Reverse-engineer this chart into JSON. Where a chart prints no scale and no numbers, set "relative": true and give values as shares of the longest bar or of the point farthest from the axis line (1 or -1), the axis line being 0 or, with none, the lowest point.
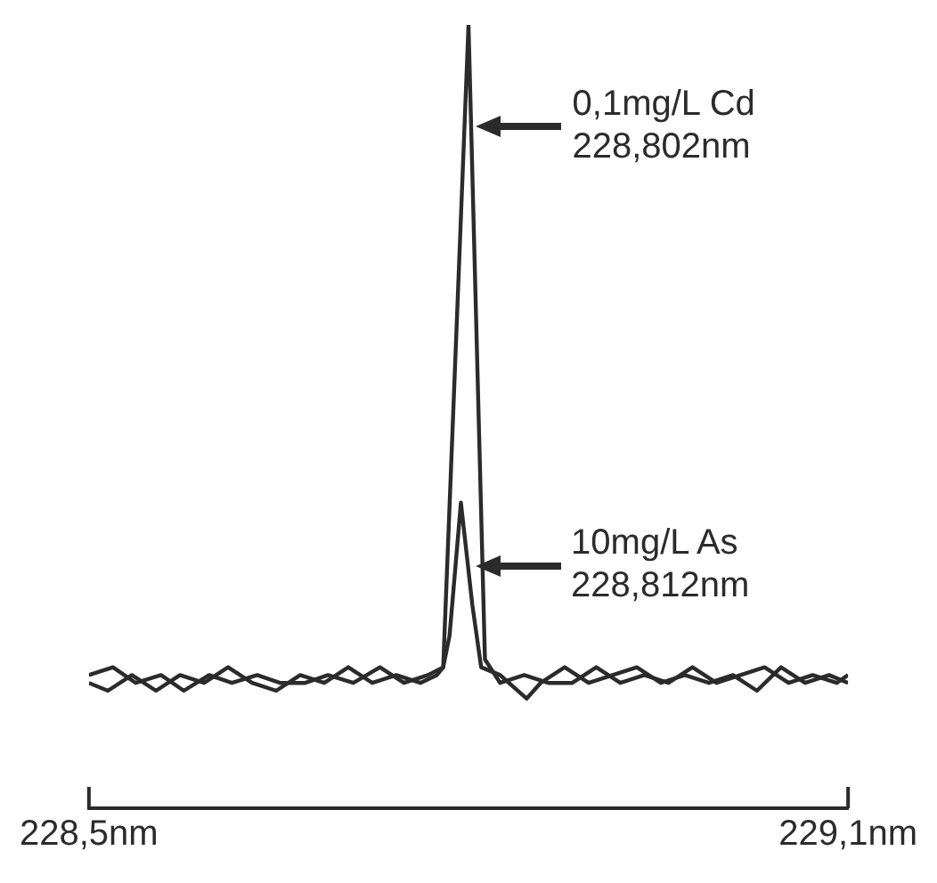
{
  "chart_data": {
    "type": "line",
    "relative": true,
    "xlim": [
      228.5,
      229.1
    ],
    "xticks": [
      {
        "value": 228.5,
        "label": "228,5nm"
      },
      {
        "value": 229.1,
        "label": "229,1nm"
      }
    ],
    "grid": false,
    "legend": false,
    "marker": "none",
    "line_style": "solid",
    "series": [
      {
        "color": "#2b2b2b",
        "x": [
          228.5,
          228.515,
          228.534,
          228.553,
          228.572,
          228.591,
          228.61,
          228.629,
          228.648,
          228.667,
          228.686,
          228.705,
          228.724,
          228.743,
          228.762,
          228.775,
          228.78,
          228.8,
          228.813,
          228.825,
          228.844,
          228.863,
          228.882,
          228.901,
          228.92,
          228.939,
          228.958,
          228.977,
          228.996,
          229.015,
          229.034,
          229.053,
          229.072,
          229.091,
          229.1
        ],
        "values": [
          0.16,
          0.15,
          0.17,
          0.15,
          0.17,
          0.16,
          0.18,
          0.16,
          0.15,
          0.17,
          0.16,
          0.18,
          0.16,
          0.17,
          0.16,
          0.17,
          0.18,
          1.0,
          0.19,
          0.16,
          0.17,
          0.16,
          0.16,
          0.18,
          0.16,
          0.17,
          0.16,
          0.18,
          0.16,
          0.17,
          0.18,
          0.16,
          0.17,
          0.16,
          0.17
        ]
      },
      {
        "color": "#2b2b2b",
        "x": [
          228.5,
          228.519,
          228.537,
          228.557,
          228.575,
          228.595,
          228.613,
          228.633,
          228.651,
          228.671,
          228.689,
          228.709,
          228.73,
          228.749,
          228.768,
          228.78,
          228.785,
          228.794,
          228.803,
          228.81,
          228.825,
          228.846,
          228.857,
          228.876,
          228.895,
          228.914,
          228.933,
          228.952,
          228.971,
          228.99,
          229.009,
          229.028,
          229.047,
          229.066,
          229.085,
          229.1
        ],
        "values": [
          0.17,
          0.18,
          0.16,
          0.17,
          0.15,
          0.17,
          0.16,
          0.17,
          0.16,
          0.16,
          0.17,
          0.16,
          0.18,
          0.16,
          0.17,
          0.18,
          0.22,
          0.39,
          0.26,
          0.18,
          0.17,
          0.14,
          0.16,
          0.18,
          0.16,
          0.17,
          0.18,
          0.16,
          0.17,
          0.16,
          0.17,
          0.15,
          0.18,
          0.16,
          0.17,
          0.16
        ]
      }
    ],
    "annotations": [
      {
        "text": "0,1mg/L Cd\n228,802nm",
        "x": 228.806,
        "y": 0.87
      },
      {
        "text": "10mg/L As\n228,812nm",
        "x": 228.805,
        "y": 0.31
      }
    ]
  }
}
